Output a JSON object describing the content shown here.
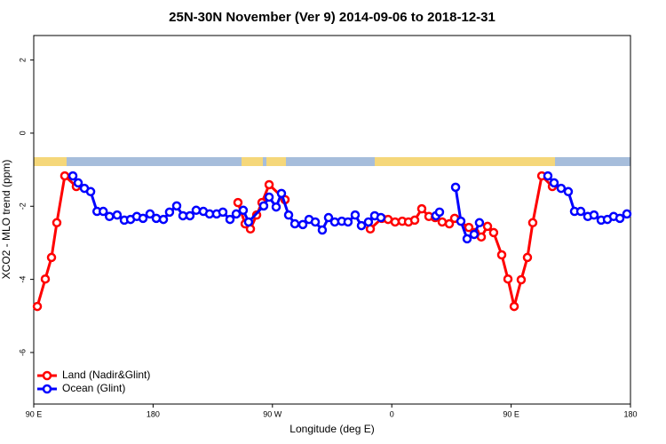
{
  "chart_data": {
    "type": "line",
    "title": "25N-30N November (Ver 9)   2014-09-06 to 2018-12-31",
    "x_label": "Longitude (deg E)",
    "y_label": "XCO2 - MLO trend (ppm)",
    "xlim": [
      90,
      540
    ],
    "xticks": [
      {
        "value": 90,
        "label": "90 E"
      },
      180,
      {
        "value": 270,
        "label": "90 W"
      },
      {
        "value": 360,
        "label": "0"
      },
      {
        "value": 450,
        "label": "90 E"
      },
      {
        "value": 540,
        "label": "180"
      }
    ],
    "ylim": [
      -7.41,
      2.67
    ],
    "yticks": [
      2,
      0,
      -2,
      -4,
      -6
    ],
    "legend": "bottom-left",
    "series": [
      {
        "name": "Land (Nadir&Glint)",
        "color": "#ff0000",
        "x": [
          92.7,
          98.7,
          103.4,
          107.4,
          113.4,
          122.1,
          null,
          244.0,
          249.4,
          253.4,
          258.1,
          262.1,
          267.5,
          279.5,
          null,
          343.8,
          352.5,
          357.2,
          362.5,
          367.9,
          372.6,
          377.3,
          382.6,
          388.0,
          392.7,
          398.0,
          403.4,
          407.4,
          418.1,
          422.8,
          427.5,
          432.2,
          436.8,
          442.9,
          447.6,
          452.3,
          457.6,
          462.3,
          466.3,
          473.1,
          481.1
        ],
        "values": [
          -4.74,
          -3.99,
          -3.4,
          -2.45,
          -1.17,
          -1.46,
          null,
          -1.9,
          -2.48,
          -2.62,
          -2.24,
          -1.9,
          -1.41,
          -1.82,
          null,
          -2.62,
          -2.33,
          -2.36,
          -2.43,
          -2.41,
          -2.43,
          -2.38,
          -2.07,
          -2.28,
          -2.31,
          -2.43,
          -2.48,
          -2.33,
          -2.58,
          -2.72,
          -2.84,
          -2.55,
          -2.72,
          -3.33,
          -3.99,
          -4.74,
          -4.01,
          -3.4,
          -2.45,
          -1.17,
          -1.46
        ]
      },
      {
        "name": "Ocean (Glint)",
        "color": "#0000ff",
        "x": [
          119.5,
          123.5,
          128.2,
          132.9,
          137.7,
          142.4,
          147.1,
          152.9,
          158.3,
          163.0,
          167.7,
          172.4,
          177.7,
          182.4,
          187.8,
          192.4,
          197.8,
          202.5,
          207.8,
          212.5,
          217.9,
          222.6,
          227.9,
          232.6,
          238.0,
          242.7,
          248.0,
          252.0,
          263.4,
          267.5,
          272.8,
          276.8,
          282.2,
          286.9,
          292.9,
          297.6,
          302.3,
          307.6,
          312.3,
          317.0,
          322.3,
          327.0,
          332.4,
          337.1,
          342.4,
          347.1,
          351.8,
          null,
          393.3,
          396.0,
          null,
          408.1,
          412.1,
          416.8,
          422.1,
          426.1,
          null,
          477.7,
          482.4,
          487.7,
          493.1,
          497.8,
          502.5,
          507.8,
          512.5,
          517.9,
          522.6,
          527.3,
          532.0,
          537.3
        ],
        "values": [
          -1.17,
          -1.36,
          -1.51,
          -1.6,
          -2.14,
          -2.14,
          -2.28,
          -2.24,
          -2.38,
          -2.36,
          -2.28,
          -2.33,
          -2.21,
          -2.33,
          -2.36,
          -2.16,
          -1.99,
          -2.26,
          -2.26,
          -2.11,
          -2.14,
          -2.21,
          -2.21,
          -2.16,
          -2.36,
          -2.21,
          -2.11,
          -2.43,
          -1.99,
          -1.75,
          -2.02,
          -1.65,
          -2.24,
          -2.48,
          -2.5,
          -2.36,
          -2.43,
          -2.65,
          -2.31,
          -2.43,
          -2.41,
          -2.43,
          -2.24,
          -2.53,
          -2.43,
          -2.26,
          -2.31,
          null,
          -2.26,
          -2.16,
          null,
          -1.48,
          -2.41,
          -2.89,
          -2.77,
          -2.45,
          null,
          -1.17,
          -1.36,
          -1.51,
          -1.6,
          -2.14,
          -2.14,
          -2.28,
          -2.24,
          -2.38,
          -2.36,
          -2.28,
          -2.33,
          -2.21
        ]
      }
    ]
  }
}
